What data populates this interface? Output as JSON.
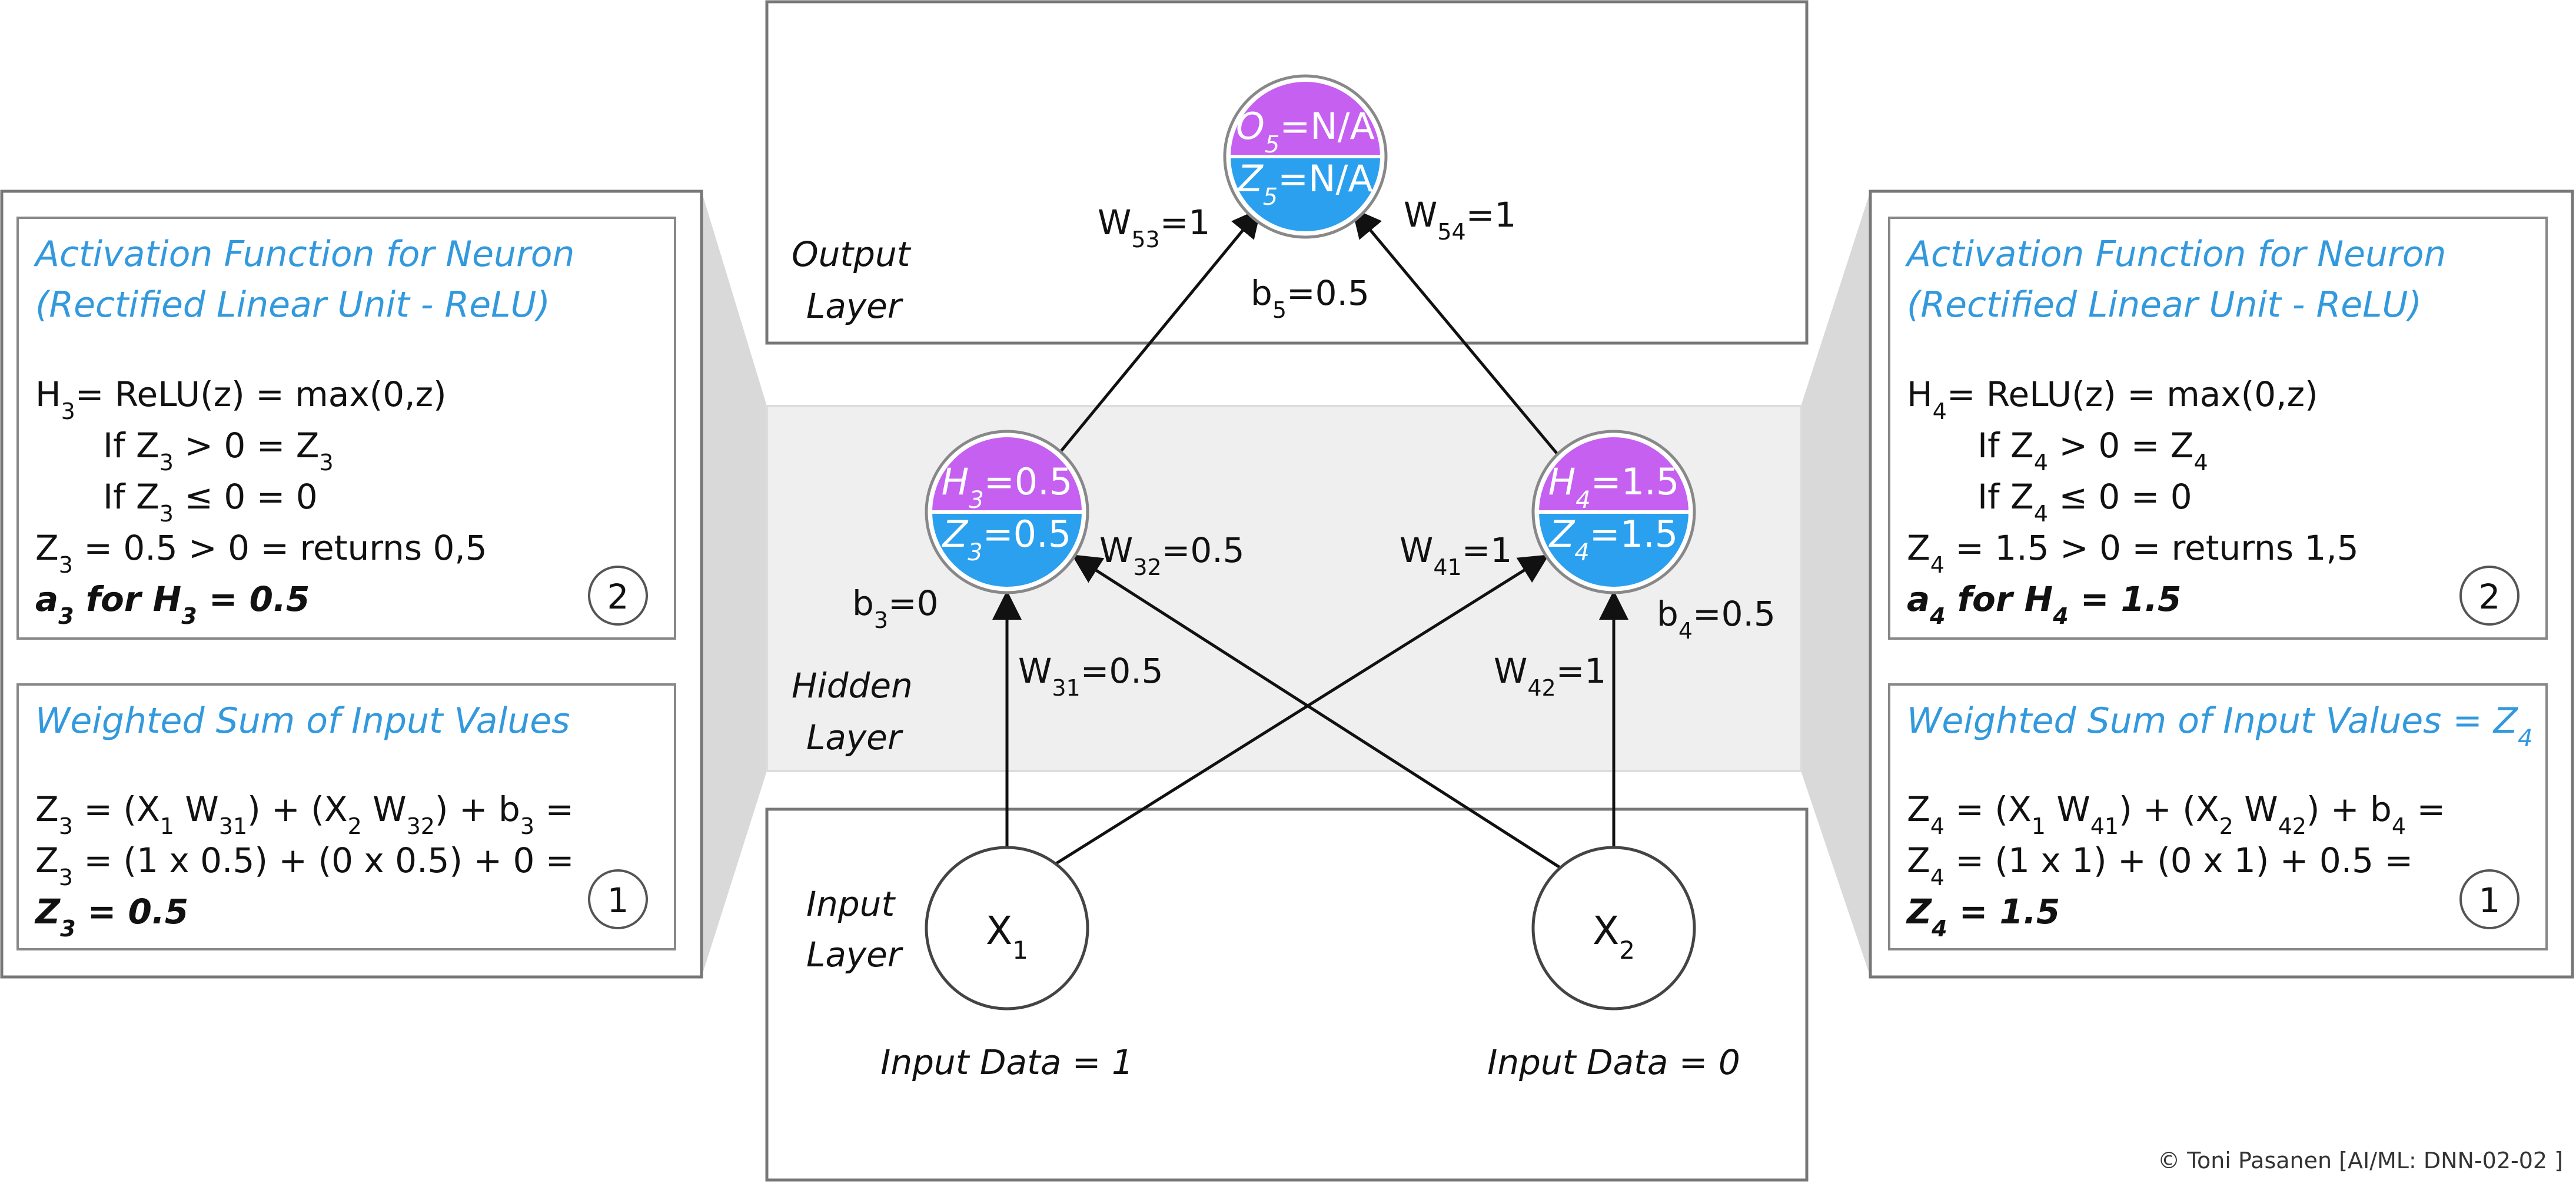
{
  "colors": {
    "purple": "#c560f0",
    "blue": "#2aa0ef",
    "title_blue": "#3399dd",
    "band": "#efefef",
    "connector": "#d9d9d9",
    "border": "#777777",
    "text": "#111111"
  },
  "layers": {
    "output": [
      "Output",
      "Layer"
    ],
    "hidden": [
      "Hidden",
      "Layer"
    ],
    "input": [
      "Input",
      "Layer"
    ]
  },
  "neurons": {
    "o5": {
      "top": {
        "letter": "O",
        "sub": "5",
        "value": "=N/A"
      },
      "bottom": {
        "letter": "Z",
        "sub": "5",
        "value": "=N/A"
      }
    },
    "h3": {
      "top": {
        "letter": "H",
        "sub": "3",
        "value": "=0.5"
      },
      "bottom": {
        "letter": "Z",
        "sub": "3",
        "value": "=0.5"
      }
    },
    "h4": {
      "top": {
        "letter": "H",
        "sub": "4",
        "value": "=1.5"
      },
      "bottom": {
        "letter": "Z",
        "sub": "4",
        "value": "=1.5"
      }
    },
    "x1": {
      "letter": "X",
      "sub": "1"
    },
    "x2": {
      "letter": "X",
      "sub": "2"
    }
  },
  "weights": {
    "w53": {
      "main": "W",
      "sub": "53",
      "rest": "=1"
    },
    "w54": {
      "main": "W",
      "sub": "54",
      "rest": "=1"
    },
    "b5": {
      "main": "b",
      "sub": "5",
      "rest": "=0.5"
    },
    "w32": {
      "main": "W",
      "sub": "32",
      "rest": "=0.5"
    },
    "w41": {
      "main": "W",
      "sub": "41",
      "rest": "=1"
    },
    "b3": {
      "main": "b",
      "sub": "3",
      "rest": "=0"
    },
    "b4": {
      "main": "b",
      "sub": "4",
      "rest": "=0.5"
    },
    "w31": {
      "main": "W",
      "sub": "31",
      "rest": "=0.5"
    },
    "w42": {
      "main": "W",
      "sub": "42",
      "rest": "=1"
    }
  },
  "input_data": {
    "x1": "Input Data = 1",
    "x2": "Input Data = 0"
  },
  "left_panel": {
    "activation": {
      "title1": "Activation Function for Neuron",
      "title2": "(Rectified Linear Unit - ReLU)",
      "l1": {
        "a": "H",
        "s1": "3",
        "b": "= ReLU(z) = max(0,z)"
      },
      "l2": {
        "a": "If Z",
        "s1": "3",
        "b": " > 0 = Z",
        "s2": "3"
      },
      "l3": {
        "a": "If Z",
        "s1": "3",
        "b": " ≤ 0 = 0"
      },
      "l4": {
        "a": "Z",
        "s1": "3",
        "b": " = 0.5 > 0 = returns 0,5"
      },
      "l5": {
        "a": "a",
        "s1": "3",
        "b": " for H",
        "s2": "3",
        "c": " = 0.5"
      },
      "step": "2"
    },
    "weighted": {
      "title": "Weighted Sum of Input Values",
      "l1": {
        "a": "Z",
        "s1": "3",
        "b": " = (X",
        "s2": "1",
        "c": " W",
        "s3": "31",
        "d": ") + (X",
        "s4": "2",
        "e": " W",
        "s5": "32",
        "f": ") + b",
        "s6": "3",
        "g": " ="
      },
      "l2": {
        "a": "Z",
        "s1": "3",
        "b": " = (1 x 0.5) + (0 x 0.5) + 0 ="
      },
      "l3": {
        "a": "Z",
        "s1": "3",
        "b": " = 0.5"
      },
      "step": "1"
    }
  },
  "right_panel": {
    "activation": {
      "title1": "Activation Function for Neuron",
      "title2": "(Rectified Linear Unit - ReLU)",
      "l1": {
        "a": "H",
        "s1": "4",
        "b": "= ReLU(z) = max(0,z)"
      },
      "l2": {
        "a": "If Z",
        "s1": "4",
        "b": " > 0 = Z",
        "s2": "4"
      },
      "l3": {
        "a": "If Z",
        "s1": "4",
        "b": " ≤ 0 = 0"
      },
      "l4": {
        "a": "Z",
        "s1": "4",
        "b": " = 1.5 > 0 = returns 1,5"
      },
      "l5": {
        "a": "a",
        "s1": "4",
        "b": " for H",
        "s2": "4",
        "c": " = 1.5"
      },
      "step": "2"
    },
    "weighted": {
      "title": "Weighted Sum of Input Values = Z",
      "title_sub": "4",
      "l1": {
        "a": "Z",
        "s1": "4",
        "b": " = (X",
        "s2": "1",
        "c": " W",
        "s3": "41",
        "d": ") + (X",
        "s4": "2",
        "e": " W",
        "s5": "42",
        "f": ") + b",
        "s6": "4",
        "g": " ="
      },
      "l2": {
        "a": "Z",
        "s1": "4",
        "b": " = (1 x 1) + (0 x 1) + 0.5 ="
      },
      "l3": {
        "a": "Z",
        "s1": "4",
        "b": " = 1.5"
      },
      "step": "1"
    }
  },
  "copyright": "© Toni Pasanen [AI/ML: DNN-02-02 ]"
}
